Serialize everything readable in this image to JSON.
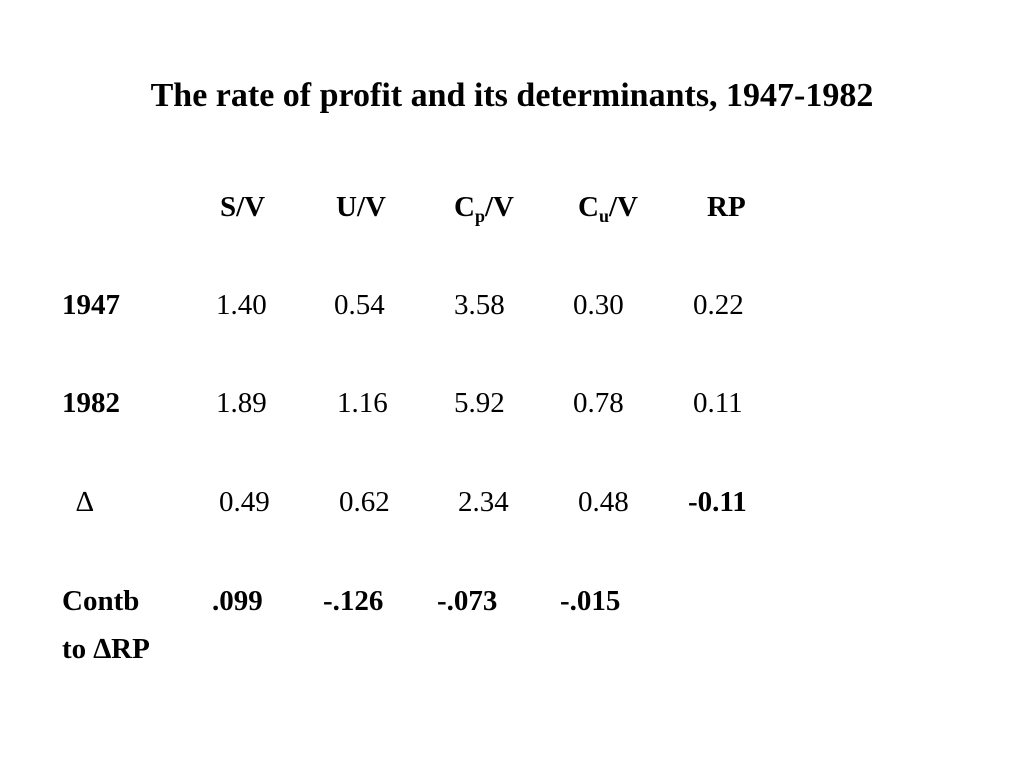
{
  "slide": {
    "title": "The rate of profit and its determinants, 1947-1982",
    "headers": {
      "sv": "S/V",
      "uv": "U/V",
      "cpv_main": "C",
      "cpv_sub": "p",
      "cpv_tail": "/V",
      "cuv_main": "C",
      "cuv_sub": "u",
      "cuv_tail": "/V",
      "rp": "RP"
    },
    "rows": {
      "y1947": {
        "label": "1947",
        "sv": "1.40",
        "uv": "0.54",
        "cpv": "3.58",
        "cuv": "0.30",
        "rp": "0.22"
      },
      "y1982": {
        "label": "1982",
        "sv": "1.89",
        "uv": "1.16",
        "cpv": "5.92",
        "cuv": "0.78",
        "rp": "0.11"
      },
      "delta": {
        "label": "∆",
        "sv": "0.49",
        "uv": "0.62",
        "cpv": "2.34",
        "cuv": "0.48",
        "rp": "-0.11"
      },
      "contb": {
        "label_line1": "Contb",
        "label_line2": "to ∆RP",
        "sv": ".099",
        "uv": "-.126",
        "cpv": "-.073",
        "cuv": "-.015"
      }
    }
  }
}
